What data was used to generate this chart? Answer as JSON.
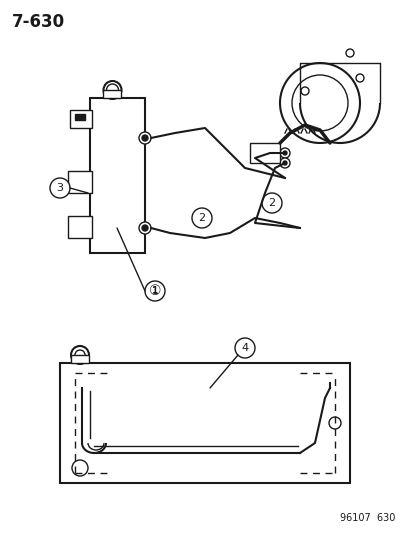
{
  "title": "7-630",
  "footer": "96107  630",
  "bg_color": "#ffffff",
  "line_color": "#1a1a1a",
  "label1": "1",
  "label2": "2",
  "label3": "3",
  "label4": "4",
  "fig_width": 4.14,
  "fig_height": 5.33,
  "dpi": 100
}
